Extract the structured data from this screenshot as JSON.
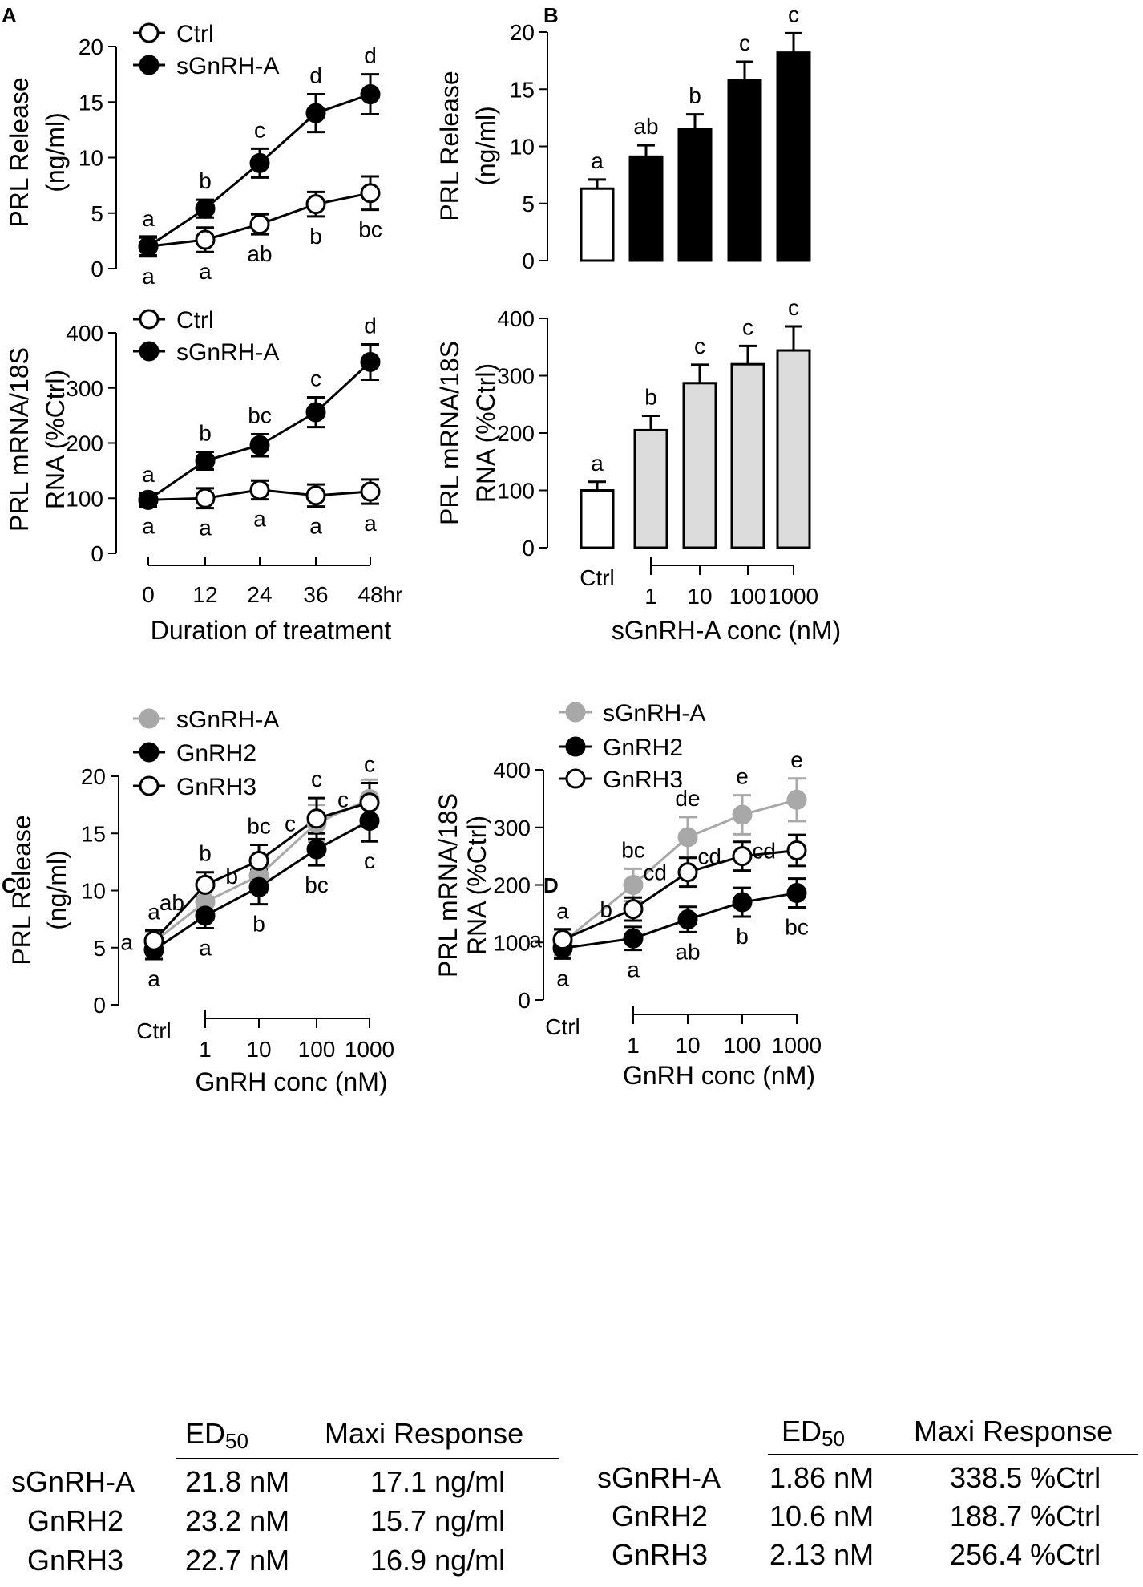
{
  "colors": {
    "black": "#000000",
    "gray_fill": "#dcdcdc",
    "gray_line": "#a8a8a8",
    "white": "#ffffff"
  },
  "chart_data": [
    {
      "panel": "A",
      "type": "line",
      "title": "",
      "x": [
        0,
        12,
        24,
        36,
        48
      ],
      "xticklabels": [
        "0",
        "12",
        "24",
        "36",
        "48"
      ],
      "xunit": "hr",
      "xlabel": "Duration of treatment",
      "ylabel": [
        "PRL Release",
        "(ng/ml)"
      ],
      "ylim": [
        0,
        20
      ],
      "yticks": [
        0,
        5,
        10,
        15,
        20
      ],
      "series": [
        {
          "name": "Ctrl",
          "marker": "open",
          "values": [
            2.0,
            2.6,
            4.0,
            5.8,
            6.8
          ],
          "errors": [
            0.9,
            1.1,
            0.9,
            1.1,
            1.5
          ],
          "letters": [
            "a",
            "a",
            "ab",
            "b",
            "bc"
          ],
          "letter_pos": [
            "below",
            "below",
            "below",
            "below",
            "below"
          ]
        },
        {
          "name": "sGnRH-A",
          "marker": "filled",
          "values": [
            2.0,
            5.4,
            9.5,
            14.0,
            15.7
          ],
          "errors": [
            0.8,
            0.8,
            1.3,
            1.7,
            1.8
          ],
          "letters": [
            "a",
            "b",
            "c",
            "d",
            "d"
          ],
          "letter_pos": [
            "above",
            "above",
            "above",
            "above",
            "above"
          ]
        }
      ]
    },
    {
      "panel": "A2",
      "type": "line",
      "title": "",
      "x": [
        0,
        12,
        24,
        36,
        48
      ],
      "xticklabels": [
        "0",
        "12",
        "24",
        "36",
        "48"
      ],
      "xunit": "hr",
      "xlabel": "Duration of treatment",
      "ylabel": [
        "PRL mRNA/18S",
        "RNA (%Ctrl)"
      ],
      "ylim": [
        0,
        400
      ],
      "yticks": [
        0,
        100,
        200,
        300,
        400
      ],
      "series": [
        {
          "name": "Ctrl",
          "marker": "open",
          "values": [
            97,
            100,
            115,
            105,
            112
          ],
          "errors": [
            12,
            18,
            17,
            20,
            22
          ],
          "letters": [
            "a",
            "a",
            "a",
            "a",
            "a"
          ],
          "letter_pos": [
            "below",
            "below",
            "below",
            "below",
            "below"
          ]
        },
        {
          "name": "sGnRH-A",
          "marker": "filled",
          "values": [
            97,
            168,
            196,
            256,
            347
          ],
          "errors": [
            12,
            16,
            20,
            27,
            32
          ],
          "letters": [
            "a",
            "b",
            "bc",
            "c",
            "d"
          ],
          "letter_pos": [
            "above",
            "above",
            "above",
            "above",
            "above"
          ]
        }
      ]
    },
    {
      "panel": "B",
      "type": "bar",
      "categories": [
        "Ctrl",
        "1",
        "10",
        "100",
        "1000"
      ],
      "values": [
        6.3,
        9.1,
        11.5,
        15.8,
        18.2
      ],
      "errors": [
        0.8,
        1.0,
        1.3,
        1.6,
        1.7
      ],
      "letters": [
        "a",
        "ab",
        "b",
        "c",
        "c"
      ],
      "fills": [
        "white",
        "black",
        "black",
        "black",
        "black"
      ],
      "ylabel": [
        "PRL Release",
        "(ng/ml)"
      ],
      "ylim": [
        0,
        20
      ],
      "yticks": [
        0,
        5,
        10,
        15,
        20
      ],
      "xlabel": "sGnRH-A conc (nM)"
    },
    {
      "panel": "B2",
      "type": "bar",
      "categories": [
        "Ctrl",
        "1",
        "10",
        "100",
        "1000"
      ],
      "values": [
        100,
        205,
        287,
        320,
        344
      ],
      "errors": [
        15,
        25,
        32,
        32,
        42
      ],
      "letters": [
        "a",
        "b",
        "c",
        "c",
        "c"
      ],
      "fills": [
        "white",
        "gray",
        "gray",
        "gray",
        "gray"
      ],
      "ylabel": [
        "PRL mRNA/18S",
        "RNA (%Ctrl)"
      ],
      "ylim": [
        0,
        400
      ],
      "yticks": [
        0,
        100,
        200,
        300,
        400
      ],
      "xlabel": "sGnRH-A conc (nM)"
    },
    {
      "panel": "C",
      "type": "line",
      "categories": [
        "Ctrl",
        "1",
        "10",
        "100",
        "1000"
      ],
      "ylabel": [
        "PRL Release",
        "(ng/ml)"
      ],
      "ylim": [
        0,
        20
      ],
      "yticks": [
        0,
        5,
        10,
        15,
        20
      ],
      "xlabel": "GnRH  conc (nM)",
      "series": [
        {
          "name": "sGnRH-A",
          "marker": "gray",
          "values": [
            5.5,
            9.0,
            11.3,
            15.9,
            18.0
          ],
          "errors": [
            0.9,
            1.2,
            1.5,
            1.6,
            1.7
          ],
          "letters": [
            "a",
            "ab",
            "b",
            "c",
            "c"
          ],
          "letter_pos": [
            "left",
            "left",
            "left",
            "left",
            "left"
          ]
        },
        {
          "name": "GnRH2",
          "marker": "filled",
          "values": [
            4.8,
            7.8,
            10.3,
            13.6,
            16.1
          ],
          "errors": [
            0.8,
            1.1,
            1.5,
            1.4,
            1.8
          ],
          "letters": [
            "a",
            "a",
            "b",
            "bc",
            "c"
          ],
          "letter_pos": [
            "below",
            "below",
            "below",
            "below",
            "below"
          ]
        },
        {
          "name": "GnRH3",
          "marker": "open",
          "values": [
            5.6,
            10.5,
            12.6,
            16.3,
            17.7
          ],
          "errors": [
            0.9,
            1.1,
            1.4,
            1.8,
            1.7
          ],
          "letters": [
            "a",
            "b",
            "bc",
            "c",
            "c"
          ],
          "letter_pos": [
            "above",
            "above",
            "above",
            "above",
            "above"
          ]
        }
      ]
    },
    {
      "panel": "D",
      "type": "line",
      "categories": [
        "Ctrl",
        "1",
        "10",
        "100",
        "1000"
      ],
      "ylabel": [
        "PRL mRNA/18S",
        "RNA (%Ctrl)"
      ],
      "ylim": [
        0,
        400
      ],
      "yticks": [
        0,
        100,
        200,
        300,
        400
      ],
      "xlabel": "GnRH  conc (nM)",
      "series": [
        {
          "name": "sGnRH-A",
          "marker": "gray",
          "values": [
            100,
            200,
            283,
            322,
            348
          ],
          "errors": [
            22,
            28,
            35,
            34,
            37
          ],
          "letters": [
            "a",
            "bc",
            "de",
            "e",
            "e"
          ],
          "letter_pos": [
            "above",
            "above",
            "above",
            "above",
            "above"
          ]
        },
        {
          "name": "GnRH2",
          "marker": "filled",
          "values": [
            90,
            107,
            140,
            170,
            186
          ],
          "errors": [
            18,
            20,
            22,
            25,
            25
          ],
          "letters": [
            "a",
            "a",
            "ab",
            "b",
            "bc"
          ],
          "letter_pos": [
            "below",
            "below",
            "below",
            "below",
            "below"
          ]
        },
        {
          "name": "GnRH3",
          "marker": "open",
          "values": [
            105,
            158,
            222,
            250,
            260
          ],
          "errors": [
            18,
            20,
            25,
            25,
            27
          ],
          "letters": [
            "a",
            "b",
            "cd",
            "cd",
            "cd"
          ],
          "letter_pos": [
            "left",
            "left",
            "left",
            "left",
            "left"
          ]
        }
      ]
    }
  ],
  "panel_labels": {
    "a": "A",
    "b": "B",
    "c": "C",
    "d": "D"
  },
  "table_c": {
    "headers": {
      "ed": "ED",
      "ed_sub": "50",
      "max": "Maxi Response"
    },
    "rows": [
      {
        "name": "sGnRH-A",
        "ed50": "21.8 nM",
        "max": "17.1 ng/ml"
      },
      {
        "name": "GnRH2",
        "ed50": "23.2 nM",
        "max": "15.7 ng/ml"
      },
      {
        "name": "GnRH3",
        "ed50": "22.7 nM",
        "max": "16.9 ng/ml"
      }
    ]
  },
  "table_d": {
    "headers": {
      "ed": "ED",
      "ed_sub": "50",
      "max": "Maxi Response"
    },
    "rows": [
      {
        "name": "sGnRH-A",
        "ed50": "1.86 nM",
        "max": "338.5 %Ctrl"
      },
      {
        "name": "GnRH2",
        "ed50": "10.6 nM",
        "max": "188.7 %Ctrl"
      },
      {
        "name": "GnRH3",
        "ed50": "2.13 nM",
        "max": "256.4 %Ctrl"
      }
    ]
  }
}
